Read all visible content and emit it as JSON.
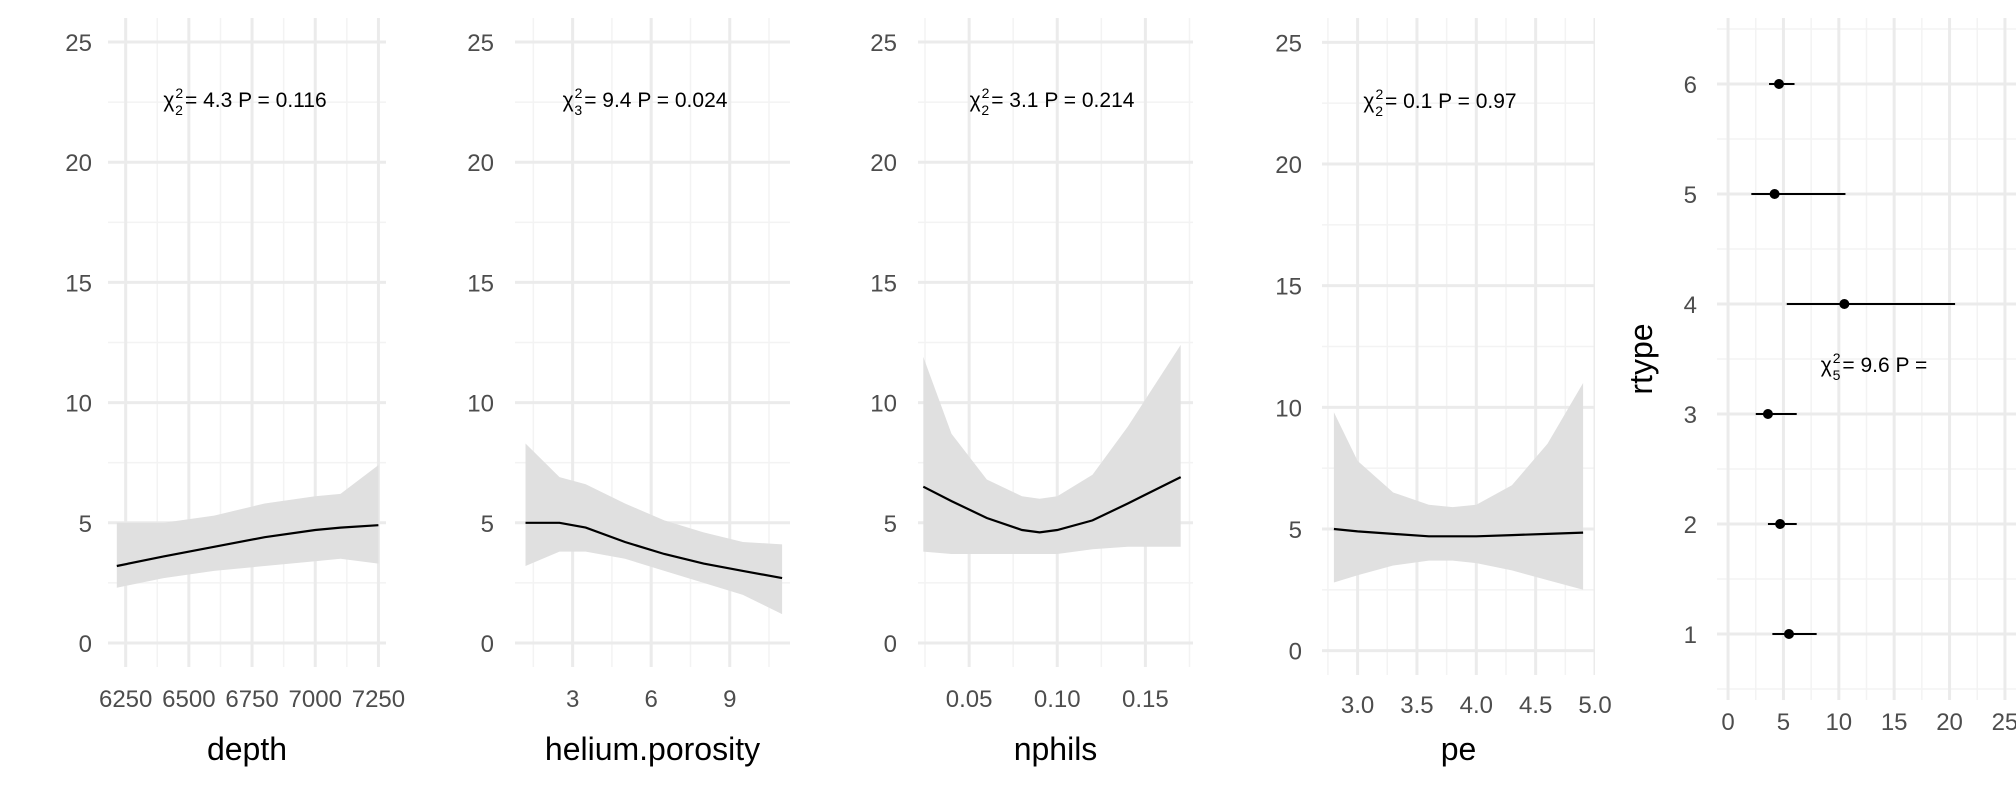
{
  "chart_data": [
    {
      "type": "line",
      "xlabel": "depth",
      "ylabel": "",
      "xlim": [
        6180,
        7280
      ],
      "ylim": [
        -1,
        26
      ],
      "xticks": [
        6250,
        6500,
        6750,
        7000,
        7250
      ],
      "xtick_labels": [
        "6250",
        "6500",
        "6750",
        "7000",
        "7250"
      ],
      "yticks": [
        0,
        5,
        10,
        15,
        20,
        25
      ],
      "ytick_labels": [
        "0",
        "5",
        "10",
        "15",
        "20",
        "25"
      ],
      "annotation": {
        "stat": "χ",
        "sup": "2",
        "sub": "2",
        "text": "= 4.3  P = 0.116"
      },
      "series": [
        {
          "x": [
            6215,
            6400,
            6600,
            6800,
            7000,
            7100,
            7250
          ],
          "y": [
            3.2,
            3.6,
            4.0,
            4.4,
            4.7,
            4.8,
            4.9
          ],
          "lower": [
            2.3,
            2.7,
            3.0,
            3.2,
            3.4,
            3.5,
            3.3
          ],
          "upper": [
            5.0,
            5.0,
            5.3,
            5.8,
            6.1,
            6.2,
            7.4
          ]
        }
      ]
    },
    {
      "type": "line",
      "xlabel": "helium.porosity",
      "ylabel": "",
      "xlim": [
        0.8,
        11.3
      ],
      "ylim": [
        -1,
        26
      ],
      "xticks": [
        3,
        6,
        9
      ],
      "xtick_labels": [
        "3",
        "6",
        "9"
      ],
      "yticks": [
        0,
        5,
        10,
        15,
        20,
        25
      ],
      "ytick_labels": [
        "0",
        "5",
        "10",
        "15",
        "20",
        "25"
      ],
      "annotation": {
        "stat": "χ",
        "sup": "2",
        "sub": "3",
        "text": "= 9.4  P = 0.024"
      },
      "series": [
        {
          "x": [
            1.2,
            2.5,
            3.5,
            5,
            6.5,
            8,
            9.5,
            11
          ],
          "y": [
            5.0,
            5.0,
            4.8,
            4.2,
            3.7,
            3.3,
            3.0,
            2.7
          ],
          "lower": [
            3.2,
            3.8,
            3.8,
            3.5,
            3.0,
            2.5,
            2.0,
            1.2
          ],
          "upper": [
            8.3,
            6.9,
            6.6,
            5.8,
            5.1,
            4.6,
            4.2,
            4.1
          ]
        }
      ]
    },
    {
      "type": "line",
      "xlabel": "nphils",
      "ylabel": "",
      "xlim": [
        0.021,
        0.177
      ],
      "ylim": [
        -1,
        26
      ],
      "xticks": [
        0.05,
        0.1,
        0.15
      ],
      "xtick_labels": [
        "0.05",
        "0.10",
        "0.15"
      ],
      "yticks": [
        0,
        5,
        10,
        15,
        20,
        25
      ],
      "ytick_labels": [
        "0",
        "5",
        "10",
        "15",
        "20",
        "25"
      ],
      "annotation": {
        "stat": "χ",
        "sup": "2",
        "sub": "2",
        "text": "= 3.1  P = 0.214"
      },
      "series": [
        {
          "x": [
            0.024,
            0.04,
            0.06,
            0.08,
            0.09,
            0.1,
            0.12,
            0.14,
            0.17
          ],
          "y": [
            6.5,
            5.9,
            5.2,
            4.7,
            4.6,
            4.7,
            5.1,
            5.8,
            6.9
          ],
          "lower": [
            3.8,
            3.7,
            3.7,
            3.7,
            3.7,
            3.7,
            3.9,
            4.0,
            4.0
          ],
          "upper": [
            11.9,
            8.7,
            6.8,
            6.1,
            6.0,
            6.1,
            7.0,
            9.0,
            12.4
          ]
        }
      ]
    },
    {
      "type": "line",
      "xlabel": "pe",
      "ylabel": "",
      "xlim": [
        2.7,
        5.0
      ],
      "ylim": [
        -1,
        26
      ],
      "xticks": [
        3.0,
        3.5,
        4.0,
        4.5,
        5.0
      ],
      "xtick_labels": [
        "3.0",
        "3.5",
        "4.0",
        "4.5",
        "5.0"
      ],
      "yticks": [
        0,
        5,
        10,
        15,
        20,
        25
      ],
      "ytick_labels": [
        "0",
        "5",
        "10",
        "15",
        "20",
        "25"
      ],
      "annotation": {
        "stat": "χ",
        "sup": "2",
        "sub": "2",
        "text": "= 0.1  P = 0.97"
      },
      "series": [
        {
          "x": [
            2.8,
            3.0,
            3.3,
            3.6,
            3.8,
            4.0,
            4.3,
            4.6,
            4.9
          ],
          "y": [
            5.0,
            4.9,
            4.8,
            4.7,
            4.7,
            4.7,
            4.75,
            4.8,
            4.85
          ],
          "lower": [
            2.8,
            3.1,
            3.5,
            3.7,
            3.7,
            3.6,
            3.3,
            2.9,
            2.5
          ],
          "upper": [
            9.8,
            7.8,
            6.5,
            6.0,
            5.9,
            6.0,
            6.8,
            8.5,
            11.0
          ]
        }
      ]
    },
    {
      "type": "scatter",
      "xlabel": "",
      "ylabel": "rtype",
      "xlim": [
        -1,
        26
      ],
      "ylim": [
        0.4,
        6.6
      ],
      "xticks": [
        0,
        5,
        10,
        15,
        20,
        25
      ],
      "xtick_labels": [
        "0",
        "5",
        "10",
        "15",
        "20",
        "25"
      ],
      "yticks": [
        1,
        2,
        3,
        4,
        5,
        6
      ],
      "ytick_labels": [
        "1",
        "2",
        "3",
        "4",
        "5",
        "6"
      ],
      "annotation": {
        "stat": "χ",
        "sup": "2",
        "sub": "5",
        "text": "= 9.6  P ="
      },
      "series": [
        {
          "categories": [
            1,
            2,
            3,
            4,
            5,
            6
          ],
          "x": [
            5.5,
            4.7,
            3.6,
            10.5,
            4.2,
            4.6
          ],
          "lower": [
            4.0,
            3.6,
            2.5,
            5.3,
            2.1,
            3.7
          ],
          "upper": [
            8.0,
            6.2,
            6.2,
            20.5,
            10.6,
            6.0
          ]
        }
      ]
    }
  ],
  "colors": {
    "band": "#e0e0e0",
    "line": "#000000",
    "grid_major": "#ebebeb",
    "grid_minor": "#f3f3f3",
    "tick_text": "#4d4d4d"
  }
}
